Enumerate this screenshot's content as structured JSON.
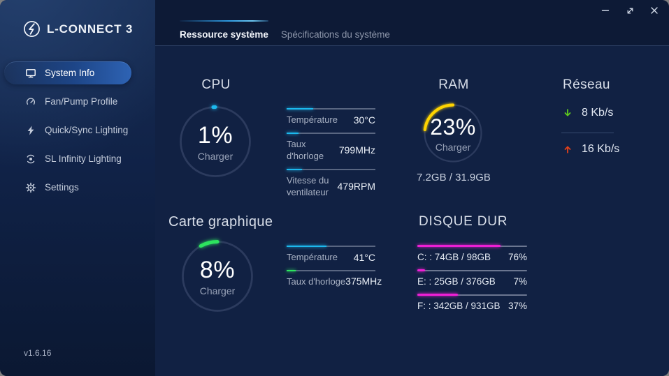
{
  "window": {
    "app_title": "L-CONNECT 3",
    "version": "v1.6.16"
  },
  "sidebar": {
    "items": [
      {
        "label": "System Info",
        "icon": "monitor-icon",
        "active": true
      },
      {
        "label": "Fan/Pump Profile",
        "icon": "gauge-icon",
        "active": false
      },
      {
        "label": "Quick/Sync Lighting",
        "icon": "lightning-icon",
        "active": false
      },
      {
        "label": "SL Infinity Lighting",
        "icon": "fan-ring-icon",
        "active": false
      },
      {
        "label": "Settings",
        "icon": "gear-icon",
        "active": false
      }
    ]
  },
  "tabs": [
    {
      "label": "Ressource système",
      "active": true
    },
    {
      "label": "Spécifications du système",
      "active": false
    }
  ],
  "cpu": {
    "title": "CPU",
    "load_pct": 1,
    "load_label": "1%",
    "sub": "Charger",
    "accent": "#1cb9ee",
    "stats": [
      {
        "label": "Température",
        "value": "30°C",
        "fill": 0.3,
        "color": "#1cb9ee"
      },
      {
        "label": "Taux d'horloge",
        "value": "799MHz",
        "fill": 0.13,
        "color": "#1cb9ee"
      },
      {
        "label": "Vitesse du ventilateur",
        "value": "479RPM",
        "fill": 0.17,
        "color": "#1cb9ee"
      }
    ]
  },
  "ram": {
    "title": "RAM",
    "load_pct": 23,
    "load_label": "23%",
    "sub": "Charger",
    "accent": "#ffd400",
    "usage": "7.2GB / 31.9GB"
  },
  "network": {
    "title": "Réseau",
    "download": "8 Kb/s",
    "upload": "16 Kb/s",
    "download_color": "#5ecb1d",
    "upload_color": "#e2411a"
  },
  "gpu": {
    "title": "Carte graphique",
    "load_pct": 8,
    "load_label": "8%",
    "sub": "Charger",
    "accent": "#2de35f",
    "stats": [
      {
        "label": "Température",
        "value": "41°C",
        "fill": 0.45,
        "color": "#1cb9ee"
      },
      {
        "label": "Taux d'horloge",
        "value": "375MHz",
        "fill": 0.1,
        "color": "#2de35f"
      }
    ]
  },
  "disk": {
    "title": "DISQUE DUR",
    "bar_color": "#ee1fd5",
    "rows": [
      {
        "label": "C: : 74GB / 98GB",
        "pct": "76%",
        "fill": 0.76
      },
      {
        "label": "E: : 25GB / 376GB",
        "pct": "7%",
        "fill": 0.07
      },
      {
        "label": "F: : 342GB / 931GB",
        "pct": "37%",
        "fill": 0.37
      }
    ]
  }
}
